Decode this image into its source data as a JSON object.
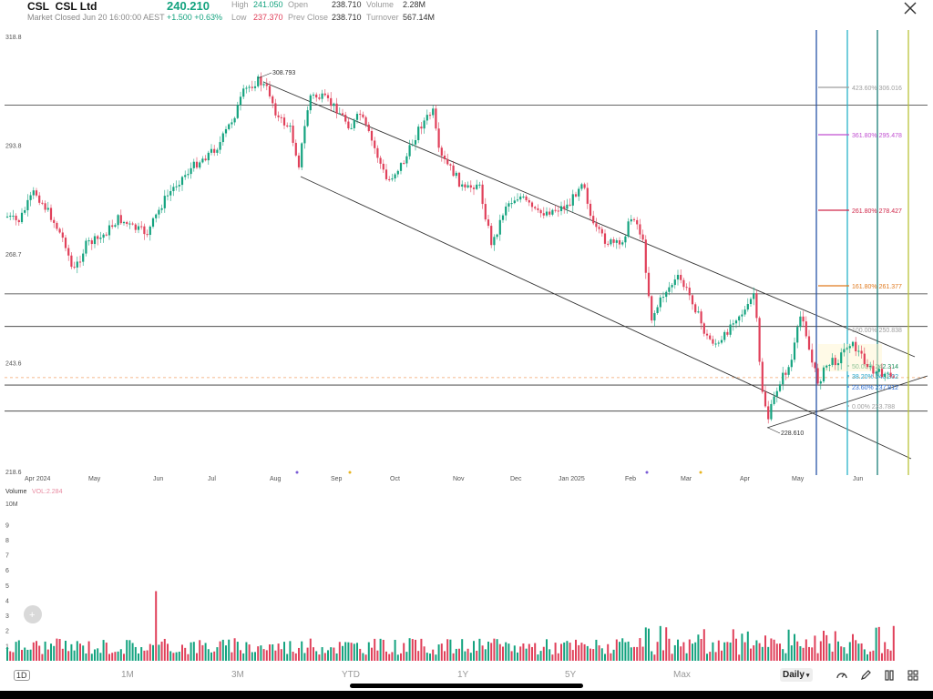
{
  "header": {
    "ticker": "CSL",
    "name": "CSL Ltd",
    "status": "Market Closed Jun 20 16:00:00 AEST",
    "price": "240.210",
    "change": "+1.500 +0.63%",
    "stats": {
      "high_label": "High",
      "high": "241.050",
      "low_label": "Low",
      "low": "237.370",
      "open_label": "Open",
      "open": "238.710",
      "prev_close_label": "Prev Close",
      "prev_close": "238.710",
      "volume_label": "Volume",
      "volume": "2.28M",
      "turnover_label": "Turnover",
      "turnover": "567.14M"
    }
  },
  "price_axis": [
    "318.8",
    "293.8",
    "268.7",
    "243.6",
    "218.6"
  ],
  "time_axis": [
    "Apr 2024",
    "May",
    "Jun",
    "Jul",
    "Aug",
    "Sep",
    "Oct",
    "Nov",
    "Dec",
    "Jan 2025",
    "Feb",
    "Mar",
    "Apr",
    "May",
    "Jun"
  ],
  "annotations": {
    "high_marker": "308.793",
    "low_marker": "228.610"
  },
  "fib_levels": [
    {
      "label": "423.60% 306.016",
      "color": "#9e9e9e"
    },
    {
      "label": "361.80% 295.478",
      "color": "#c04fd0"
    },
    {
      "label": "261.80% 278.427",
      "color": "#d0284a"
    },
    {
      "label": "161.80% 261.377",
      "color": "#e07a1f"
    },
    {
      "label": "100.00% 250.838",
      "color": "#9e9e9e"
    },
    {
      "label": "50.00% 242.314",
      "color": "#1a8f5a"
    },
    {
      "label": "38.20% 240.302",
      "color": "#1fa3c9"
    },
    {
      "label": "23.60% 237.812",
      "color": "#2c6fd6"
    },
    {
      "label": "0.00% 233.788",
      "color": "#9e9e9e"
    }
  ],
  "volume": {
    "title": "Volume",
    "indicator": "VOL:2.284",
    "unit": "10M",
    "axis": [
      "9",
      "8",
      "7",
      "6",
      "5",
      "4",
      "3",
      "2",
      "1"
    ]
  },
  "bottom": {
    "ranges": [
      "1D",
      "1M",
      "3M",
      "YTD",
      "1Y",
      "5Y",
      "Max"
    ],
    "interval": "Daily"
  },
  "colors": {
    "up": "#14a37f",
    "down": "#e0405a",
    "vline_blue": "#2855a8",
    "vline_cyan": "#29b4c8",
    "vline_teal": "#1b7f7a",
    "vline_olive": "#b9c43a"
  },
  "chart_data": {
    "type": "candlestick",
    "title": "CSL Ltd",
    "ylim": [
      218.6,
      318.8
    ],
    "x_labels": [
      "Apr 2024",
      "May",
      "Jun",
      "Jul",
      "Aug",
      "Sep",
      "Oct",
      "Nov",
      "Dec",
      "Jan 2025",
      "Feb",
      "Mar",
      "Apr",
      "May",
      "Jun"
    ],
    "close_path": [
      [
        "Apr 2024",
        275
      ],
      [
        "May",
        268
      ],
      [
        "Jun",
        280
      ],
      [
        "Jul",
        300
      ],
      [
        "Aug",
        306
      ],
      [
        "Sep",
        300
      ],
      [
        "Oct",
        282
      ],
      [
        "Nov",
        285
      ],
      [
        "Dec",
        275
      ],
      [
        "Jan 2025",
        278
      ],
      [
        "Feb",
        262
      ],
      [
        "Mar",
        250
      ],
      [
        "Apr",
        236
      ],
      [
        "May",
        245
      ],
      [
        "Jun",
        240.21
      ]
    ],
    "horizontal_levels": [
      303.0,
      259.5,
      252.0,
      238.5,
      232.5
    ],
    "last_price": 240.21
  }
}
